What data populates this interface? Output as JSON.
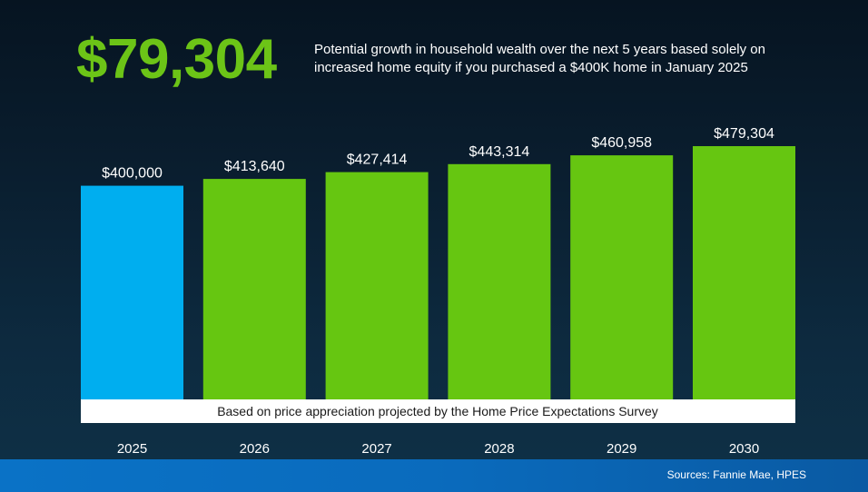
{
  "headline": {
    "value": "$79,304",
    "description": "Potential growth in household wealth over the next 5 years based solely on increased home equity if you purchased a $400K home in January 2025"
  },
  "colors": {
    "headline": "#6cc417",
    "bar_base": "#00aeef",
    "bar_growth": "#66c611",
    "note_bg": "#ffffff",
    "note_text": "#1a1a1a"
  },
  "chart_data": {
    "type": "bar",
    "categories": [
      "2025",
      "2026",
      "2027",
      "2028",
      "2029",
      "2030"
    ],
    "values": [
      400000,
      413640,
      427414,
      443314,
      460958,
      479304
    ],
    "data_labels": [
      "$400,000",
      "$413,640",
      "$427,414",
      "$443,314",
      "$460,958",
      "$479,304"
    ],
    "title": "",
    "xlabel": "",
    "ylabel": "",
    "ylim": [
      -75000,
      479304
    ],
    "grid": false,
    "legend": "none",
    "annotation": "Based on price appreciation projected by the Home Price Expectations Survey"
  },
  "footer": {
    "source": "Sources: Fannie Mae, HPES"
  }
}
